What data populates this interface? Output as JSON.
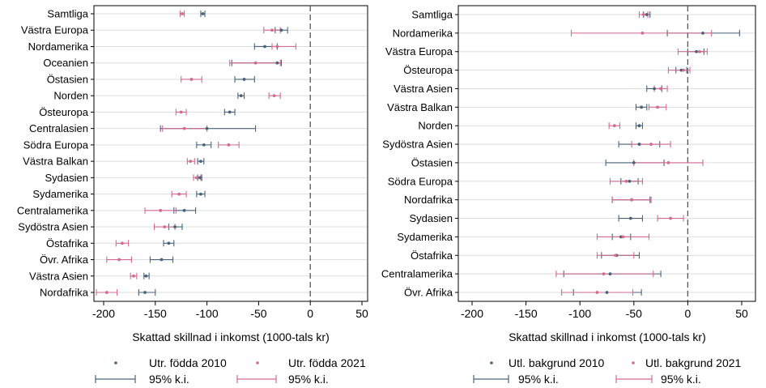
{
  "colors": {
    "s2010": "#4a6378",
    "s2021": "#d36a92",
    "grid": "#dedede",
    "zero": "#555555",
    "axis": "#000000"
  },
  "chart_data": [
    {
      "type": "scatter",
      "title": "",
      "xlabel": "Skattad skillnad i inkomst (1000-tals kr)",
      "ylabel": "",
      "xlim": [
        -210,
        55
      ],
      "xticks": [
        -200,
        -150,
        -100,
        -50,
        0,
        50
      ],
      "grid": true,
      "zero_line": "dashed",
      "legend_position": "bottom",
      "categories": [
        "Samtliga",
        "Västra Europa",
        "Nordamerika",
        "Oceanien",
        "Östasien",
        "Norden",
        "Östeuropa",
        "Centralasien",
        "Södra Europa",
        "Västra Balkan",
        "Sydasien",
        "Sydamerika",
        "Centralamerika",
        "Sydöstra Asien",
        "Östafrika",
        "Övr. Afrika",
        "Västra Asien",
        "Nordafrika"
      ],
      "series": [
        {
          "name": "Utr. födda 2010",
          "ci_label": "95% k.i.",
          "color_key": "s2010",
          "values": [
            -104,
            -28,
            -44,
            -32,
            -64,
            -67,
            -78,
            -100,
            -103,
            -106,
            -107,
            -106,
            -122,
            -131,
            -137,
            -144,
            -159,
            -160
          ],
          "ci_low": [
            -106,
            -34,
            -54,
            -76,
            -73,
            -70,
            -83,
            -145,
            -110,
            -109,
            -109,
            -110,
            -132,
            -137,
            -142,
            -155,
            -161,
            -166
          ],
          "ci_high": [
            -102,
            -22,
            -32,
            -28,
            -54,
            -64,
            -73,
            -53,
            -96,
            -103,
            -105,
            -102,
            -111,
            -124,
            -132,
            -133,
            -156,
            -150
          ]
        },
        {
          "name": "Utr. födda 2021",
          "ci_label": "95% k.i.",
          "color_key": "s2021",
          "values": [
            -124,
            -37,
            -32,
            -53,
            -115,
            -35,
            -125,
            -122,
            -79,
            -116,
            -110,
            -127,
            -145,
            -141,
            -182,
            -185,
            -171,
            -197
          ],
          "ci_low": [
            -126,
            -45,
            -37,
            -78,
            -125,
            -40,
            -130,
            -143,
            -89,
            -119,
            -113,
            -134,
            -160,
            -151,
            -188,
            -197,
            -174,
            -207
          ],
          "ci_high": [
            -122,
            -29,
            -14,
            -29,
            -105,
            -29,
            -120,
            -100,
            -69,
            -112,
            -106,
            -120,
            -130,
            -131,
            -176,
            -173,
            -168,
            -187
          ]
        }
      ]
    },
    {
      "type": "scatter",
      "title": "",
      "xlabel": "Skattad skillnad i inkomst (1000-tals kr)",
      "ylabel": "",
      "xlim": [
        -210,
        55
      ],
      "xticks": [
        -200,
        -150,
        -100,
        -50,
        0,
        50
      ],
      "grid": true,
      "zero_line": "dashed",
      "legend_position": "bottom",
      "categories": [
        "Samtliga",
        "Nordamerika",
        "Västra Europa",
        "Östeuropa",
        "Västra Asien",
        "Västra Balkan",
        "Norden",
        "Sydöstra Asien",
        "Östasien",
        "Södra Europa",
        "Nordafrika",
        "Sydasien",
        "Sydamerika",
        "Östafrika",
        "Centralamerika",
        "Övr. Afrika"
      ],
      "series": [
        {
          "name": "Utl. bakgrund 2010",
          "ci_label": "95% k.i.",
          "color_key": "s2010",
          "values": [
            -38,
            14,
            8,
            -6,
            -31,
            -43,
            -45,
            -45,
            -50,
            -54,
            -52,
            -53,
            -62,
            -66,
            -72,
            -75
          ],
          "ci_low": [
            -41,
            -19,
            0,
            -11,
            -38,
            -48,
            -48,
            -64,
            -76,
            -62,
            -70,
            -64,
            -70,
            -80,
            -115,
            -106
          ],
          "ci_high": [
            -35,
            48,
            15,
            -1,
            -24,
            -38,
            -42,
            -26,
            -22,
            -46,
            -35,
            -42,
            -53,
            -45,
            -25,
            -43
          ]
        },
        {
          "name": "Utl. bakgrund 2021",
          "ci_label": "95% k.i.",
          "color_key": "s2021",
          "values": [
            -41,
            -42,
            11,
            -4,
            -25,
            -28,
            -68,
            -34,
            -18,
            -57,
            -52,
            -16,
            -60,
            -67,
            -78,
            -84
          ],
          "ci_low": [
            -45,
            -108,
            -9,
            -18,
            -31,
            -36,
            -73,
            -52,
            -50,
            -72,
            -70,
            -28,
            -84,
            -84,
            -122,
            -117
          ],
          "ci_high": [
            -37,
            22,
            18,
            2,
            -19,
            -20,
            -63,
            -16,
            14,
            -42,
            -34,
            -4,
            -36,
            -50,
            -32,
            -51
          ]
        }
      ]
    }
  ]
}
